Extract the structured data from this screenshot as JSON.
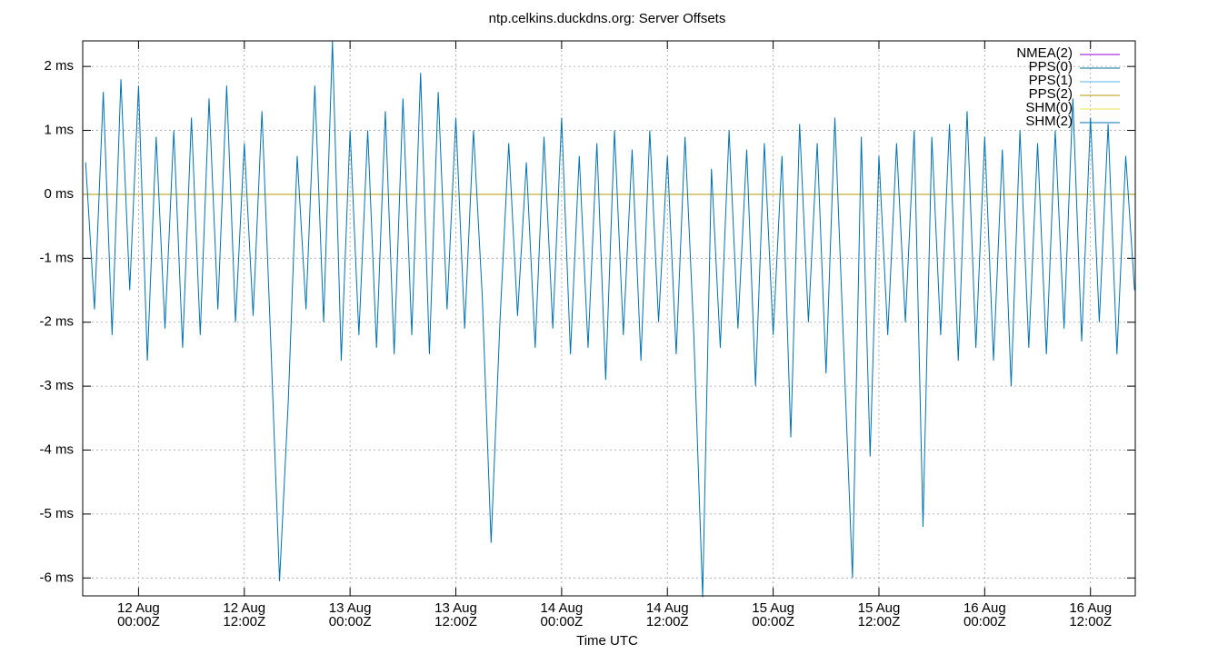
{
  "chart_data": {
    "type": "line",
    "title": "ntp.celkins.duckdns.org: Server Offsets",
    "xlabel": "Time UTC",
    "grid": true,
    "legend": "top-right",
    "xlim": [
      "11 Aug 17:40Z",
      "16 Aug 17:05Z"
    ],
    "xticks": [
      {
        "value": "12 Aug 00:00Z",
        "label": "12 Aug\n00:00Z"
      },
      {
        "value": "12 Aug 12:00Z",
        "label": "12 Aug\n12:00Z"
      },
      {
        "value": "13 Aug 00:00Z",
        "label": "13 Aug\n00:00Z"
      },
      {
        "value": "13 Aug 12:00Z",
        "label": "13 Aug\n12:00Z"
      },
      {
        "value": "14 Aug 00:00Z",
        "label": "14 Aug\n00:00Z"
      },
      {
        "value": "14 Aug 12:00Z",
        "label": "14 Aug\n12:00Z"
      },
      {
        "value": "15 Aug 00:00Z",
        "label": "15 Aug\n00:00Z"
      },
      {
        "value": "15 Aug 12:00Z",
        "label": "15 Aug\n12:00Z"
      },
      {
        "value": "16 Aug 00:00Z",
        "label": "16 Aug\n00:00Z"
      },
      {
        "value": "16 Aug 12:00Z",
        "label": "16 Aug\n12:00Z"
      }
    ],
    "ylim": [
      -6.28,
      2.4
    ],
    "yticks": [
      {
        "value": -6,
        "label": "-6 ms"
      },
      {
        "value": -5,
        "label": "-5 ms"
      },
      {
        "value": -4,
        "label": "-4 ms"
      },
      {
        "value": -3,
        "label": "-3 ms"
      },
      {
        "value": -2,
        "label": "-2 ms"
      },
      {
        "value": -1,
        "label": "-1 ms"
      },
      {
        "value": 0,
        "label": "0 ms"
      },
      {
        "value": 1,
        "label": "1 ms"
      },
      {
        "value": 2,
        "label": "2 ms"
      }
    ],
    "series": [
      {
        "name": "NMEA(2)",
        "color": "#9400d3",
        "x": [],
        "values": []
      },
      {
        "name": "PPS(0)",
        "color": "#00729a",
        "x": [
          "11 Aug 17:40Z",
          "16 Aug 17:05Z"
        ],
        "values": [
          0,
          0
        ]
      },
      {
        "name": "PPS(1)",
        "color": "#56b4e9",
        "x": [],
        "values": []
      },
      {
        "name": "PPS(2)",
        "color": "#b89a00",
        "x": [
          "11 Aug 17:40Z",
          "16 Aug 17:05Z"
        ],
        "values": [
          0,
          0
        ]
      },
      {
        "name": "SHM(0)",
        "color": "#f0e442",
        "x": [],
        "values": []
      },
      {
        "name": "SHM(2)",
        "color": "#0072b2",
        "x": [
          "11 Aug 18:00Z",
          "11 Aug 19:00Z",
          "11 Aug 20:00Z",
          "11 Aug 21:00Z",
          "11 Aug 22:00Z",
          "11 Aug 23:00Z",
          "12 Aug 00:00Z",
          "12 Aug 01:00Z",
          "12 Aug 02:00Z",
          "12 Aug 03:00Z",
          "12 Aug 04:00Z",
          "12 Aug 05:00Z",
          "12 Aug 06:00Z",
          "12 Aug 07:00Z",
          "12 Aug 08:00Z",
          "12 Aug 09:00Z",
          "12 Aug 10:00Z",
          "12 Aug 11:00Z",
          "12 Aug 12:00Z",
          "12 Aug 13:00Z",
          "12 Aug 14:00Z",
          "12 Aug 15:00Z",
          "12 Aug 16:00Z",
          "12 Aug 17:00Z",
          "12 Aug 18:00Z",
          "12 Aug 19:00Z",
          "12 Aug 20:00Z",
          "12 Aug 21:00Z",
          "12 Aug 22:00Z",
          "12 Aug 23:00Z",
          "13 Aug 00:00Z",
          "13 Aug 01:00Z",
          "13 Aug 02:00Z",
          "13 Aug 03:00Z",
          "13 Aug 04:00Z",
          "13 Aug 05:00Z",
          "13 Aug 06:00Z",
          "13 Aug 07:00Z",
          "13 Aug 08:00Z",
          "13 Aug 09:00Z",
          "13 Aug 10:00Z",
          "13 Aug 11:00Z",
          "13 Aug 12:00Z",
          "13 Aug 13:00Z",
          "13 Aug 14:00Z",
          "13 Aug 15:00Z",
          "13 Aug 16:00Z",
          "13 Aug 17:00Z",
          "13 Aug 18:00Z",
          "13 Aug 19:00Z",
          "13 Aug 20:00Z",
          "13 Aug 21:00Z",
          "13 Aug 22:00Z",
          "13 Aug 23:00Z",
          "14 Aug 00:00Z",
          "14 Aug 01:00Z",
          "14 Aug 02:00Z",
          "14 Aug 03:00Z",
          "14 Aug 04:00Z",
          "14 Aug 05:00Z",
          "14 Aug 06:00Z",
          "14 Aug 07:00Z",
          "14 Aug 08:00Z",
          "14 Aug 09:00Z",
          "14 Aug 10:00Z",
          "14 Aug 11:00Z",
          "14 Aug 12:00Z",
          "14 Aug 13:00Z",
          "14 Aug 14:00Z",
          "14 Aug 15:00Z",
          "14 Aug 16:00Z",
          "14 Aug 17:00Z",
          "14 Aug 18:00Z",
          "14 Aug 19:00Z",
          "14 Aug 20:00Z",
          "14 Aug 21:00Z",
          "14 Aug 22:00Z",
          "14 Aug 23:00Z",
          "15 Aug 00:00Z",
          "15 Aug 01:00Z",
          "15 Aug 02:00Z",
          "15 Aug 03:00Z",
          "15 Aug 04:00Z",
          "15 Aug 05:00Z",
          "15 Aug 06:00Z",
          "15 Aug 07:00Z",
          "15 Aug 08:00Z",
          "15 Aug 09:00Z",
          "15 Aug 10:00Z",
          "15 Aug 11:00Z",
          "15 Aug 12:00Z",
          "15 Aug 13:00Z",
          "15 Aug 14:00Z",
          "15 Aug 15:00Z",
          "15 Aug 16:00Z",
          "15 Aug 17:00Z",
          "15 Aug 18:00Z",
          "15 Aug 19:00Z",
          "15 Aug 20:00Z",
          "15 Aug 21:00Z",
          "15 Aug 22:00Z",
          "15 Aug 23:00Z",
          "16 Aug 00:00Z",
          "16 Aug 01:00Z",
          "16 Aug 02:00Z",
          "16 Aug 03:00Z",
          "16 Aug 04:00Z",
          "16 Aug 05:00Z",
          "16 Aug 06:00Z",
          "16 Aug 07:00Z",
          "16 Aug 08:00Z",
          "16 Aug 09:00Z",
          "16 Aug 10:00Z",
          "16 Aug 11:00Z",
          "16 Aug 12:00Z",
          "16 Aug 13:00Z",
          "16 Aug 14:00Z",
          "16 Aug 15:00Z",
          "16 Aug 16:00Z",
          "16 Aug 17:00Z"
        ],
        "values": [
          0.5,
          -1.8,
          1.6,
          -2.2,
          1.8,
          -1.5,
          1.7,
          -2.6,
          0.9,
          -2.1,
          1.0,
          -2.4,
          1.2,
          -2.2,
          1.5,
          -1.8,
          1.7,
          -2.0,
          0.8,
          -1.9,
          1.3,
          -2.3,
          -6.05,
          -3.2,
          0.6,
          -1.8,
          1.7,
          -2.0,
          2.4,
          -2.6,
          1.0,
          -2.2,
          1.0,
          -2.4,
          1.3,
          -2.5,
          1.5,
          -2.2,
          1.9,
          -2.5,
          1.6,
          -1.8,
          1.2,
          -2.1,
          1.0,
          -1.6,
          -5.45,
          -2.0,
          0.8,
          -1.9,
          0.5,
          -2.4,
          0.9,
          -2.1,
          1.2,
          -2.5,
          0.6,
          -2.4,
          0.8,
          -2.9,
          1.0,
          -2.2,
          0.7,
          -2.6,
          1.0,
          -2.0,
          0.6,
          -2.5,
          0.9,
          -2.2,
          -6.3,
          0.4,
          -2.4,
          1.0,
          -2.1,
          0.7,
          -3.0,
          0.8,
          -2.2,
          0.6,
          -3.8,
          1.1,
          -2.0,
          0.8,
          -2.8,
          1.2,
          -2.4,
          -6.0,
          0.9,
          -4.1,
          0.6,
          -2.2,
          0.8,
          -2.0,
          1.0,
          -5.2,
          0.9,
          -2.2,
          1.1,
          -2.6,
          1.3,
          -2.4,
          0.9,
          -2.6,
          0.7,
          -3.0,
          1.0,
          -2.4,
          0.8,
          -2.5,
          1.0,
          -2.1,
          1.5,
          -2.3,
          1.2,
          -2.0,
          1.1,
          -2.5,
          0.6,
          -1.5
        ]
      }
    ]
  }
}
